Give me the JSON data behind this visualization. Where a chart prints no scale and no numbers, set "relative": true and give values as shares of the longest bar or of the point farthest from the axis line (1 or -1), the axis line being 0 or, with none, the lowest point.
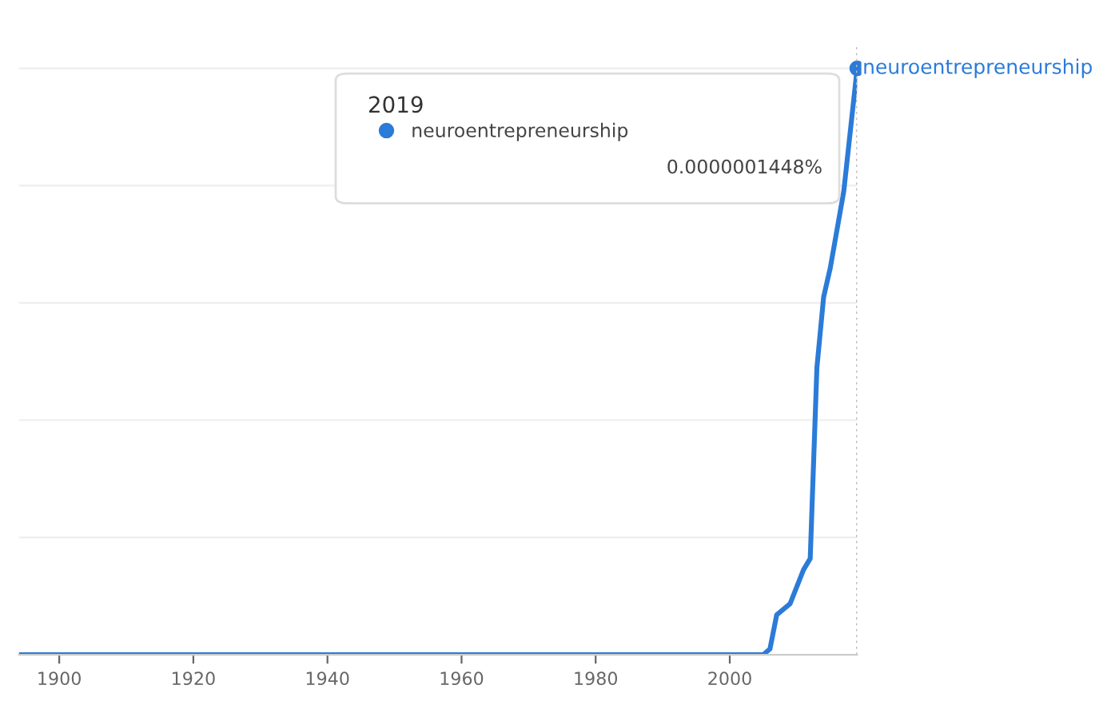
{
  "chart_data": {
    "type": "line",
    "relative": true,
    "x": [
      1894,
      2005,
      2006,
      2007,
      2009,
      2011,
      2012,
      2013,
      2014,
      2015,
      2017,
      2019
    ],
    "series": [
      {
        "name": "neuroentrepreneurship",
        "color": "#2b7bd9",
        "values": [
          0,
          0,
          0.01,
          0.068,
          0.087,
          0.145,
          0.164,
          0.49,
          0.61,
          0.66,
          0.79,
          1
        ]
      }
    ],
    "xlim": [
      1894,
      2019
    ],
    "xticks": [
      1900,
      1920,
      1940,
      1960,
      1980,
      2000
    ],
    "grid": "y",
    "legend": "top",
    "legend_title": "2019",
    "ref_lines": [
      {
        "axis": "x",
        "value": 2019,
        "color": "#bbbbbb",
        "line_style": "dotted"
      }
    ],
    "annotations": [
      "0.0000001448%"
    ]
  }
}
